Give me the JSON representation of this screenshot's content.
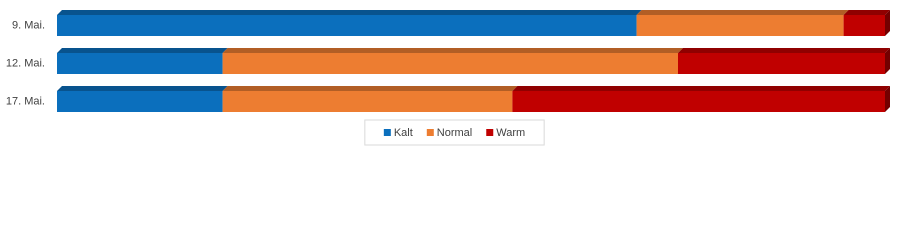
{
  "chart_data": {
    "type": "stacked-bar-100",
    "categories": [
      "9. Mai.",
      "12. Mai.",
      "17. Mai."
    ],
    "series": [
      {
        "name": "Kalt",
        "color": "#0b6fbd",
        "values": [
          70,
          20,
          20
        ]
      },
      {
        "name": "Normal",
        "color": "#ed7d31",
        "values": [
          25,
          55,
          35
        ]
      },
      {
        "name": "Warm",
        "color": "#c00000",
        "values": [
          5,
          25,
          45
        ]
      }
    ],
    "legend": "bottom"
  }
}
